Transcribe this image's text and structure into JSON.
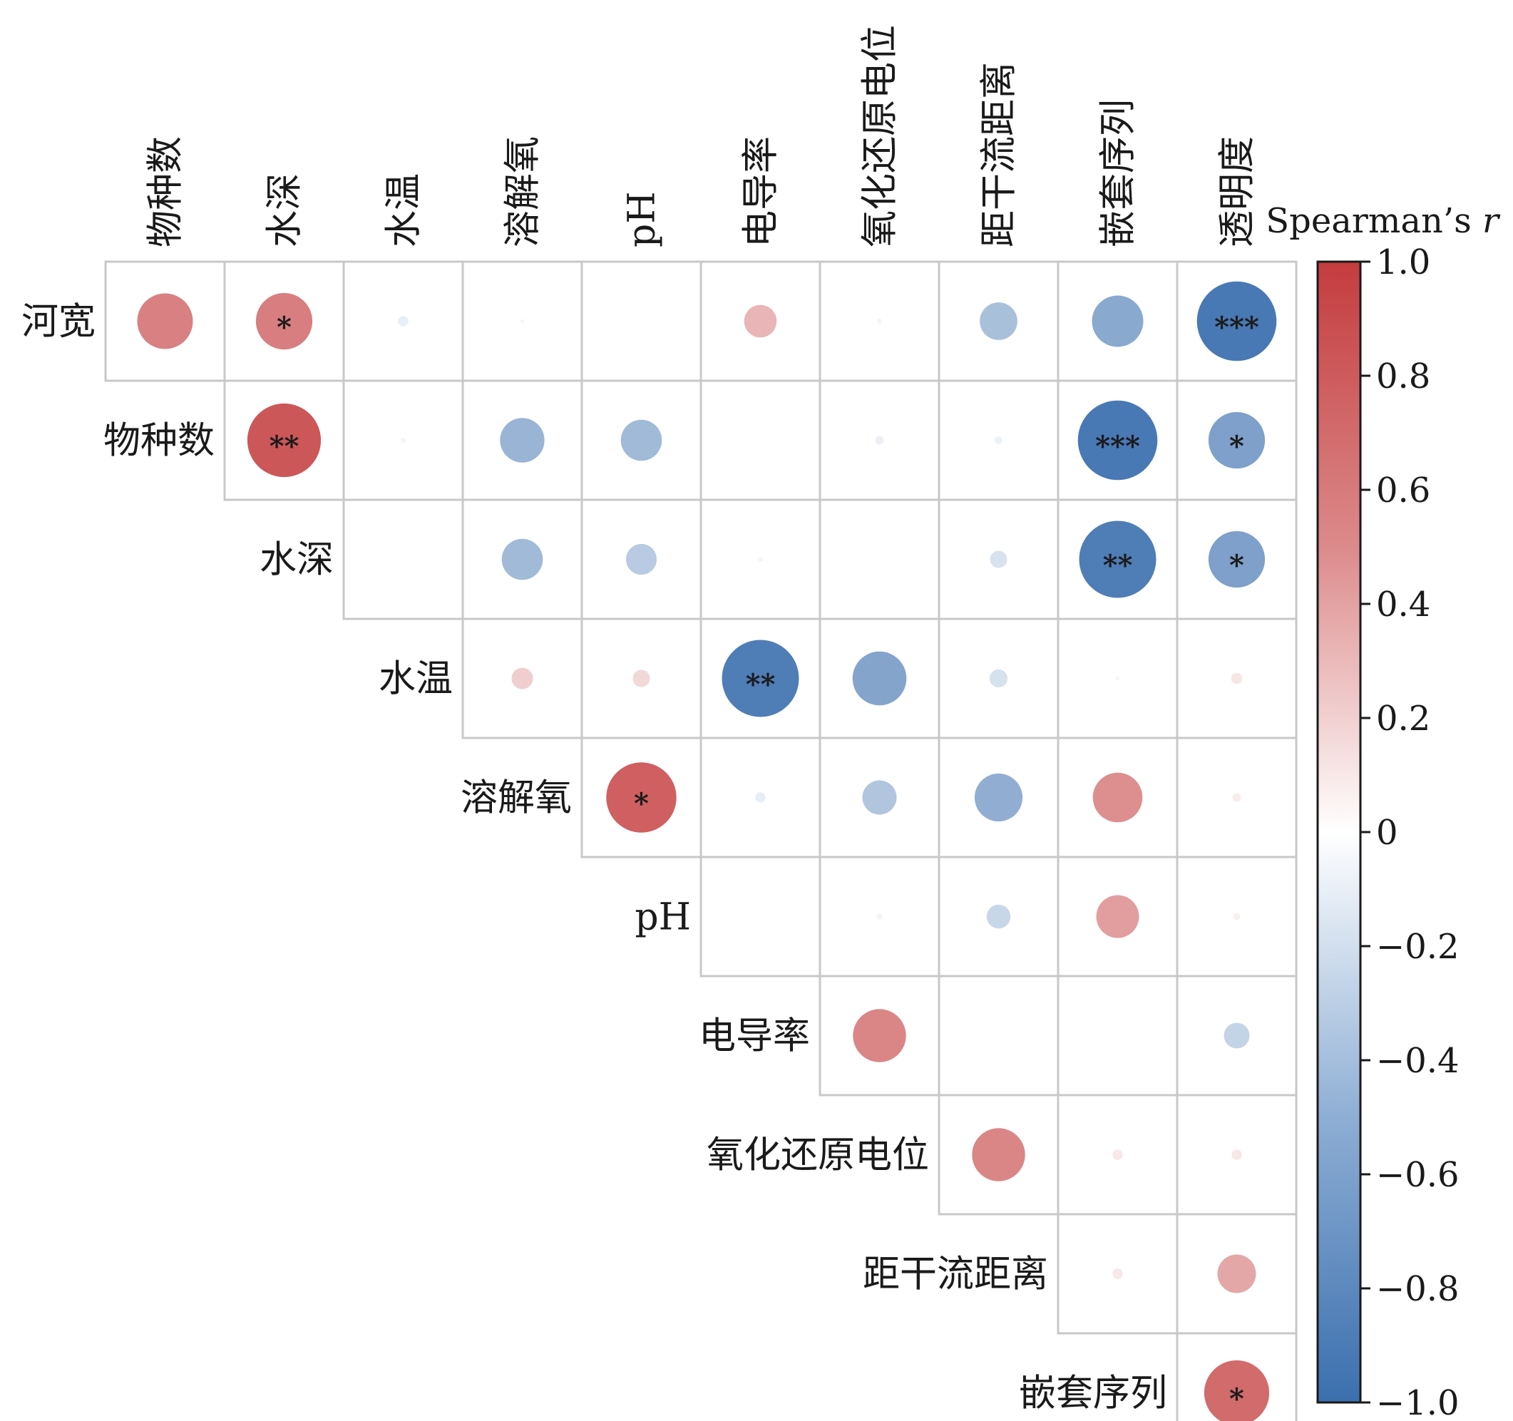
{
  "chart_data": {
    "type": "heatmap",
    "subtype": "upper-triangular correlation circle matrix",
    "row_labels": [
      "河宽",
      "物种数",
      "水深",
      "水温",
      "溶解氧",
      "pH",
      "电导率",
      "氧化还原电位",
      "距干流距离",
      "嵌套序列"
    ],
    "column_labels": [
      "物种数",
      "水深",
      "水温",
      "溶解氧",
      "pH",
      "电导率",
      "氧化还原电位",
      "距干流距离",
      "嵌套序列",
      "透明度"
    ],
    "cells": [
      {
        "row": 0,
        "col": 0,
        "r": 0.65,
        "stars": ""
      },
      {
        "row": 0,
        "col": 1,
        "r": 0.66,
        "stars": "*"
      },
      {
        "row": 0,
        "col": 2,
        "r": -0.12,
        "stars": ""
      },
      {
        "row": 0,
        "col": 3,
        "r": -0.05,
        "stars": ""
      },
      {
        "row": 0,
        "col": 4,
        "r": -0.01,
        "stars": ""
      },
      {
        "row": 0,
        "col": 5,
        "r": 0.38,
        "stars": ""
      },
      {
        "row": 0,
        "col": 6,
        "r": -0.06,
        "stars": ""
      },
      {
        "row": 0,
        "col": 7,
        "r": -0.44,
        "stars": ""
      },
      {
        "row": 0,
        "col": 8,
        "r": -0.6,
        "stars": ""
      },
      {
        "row": 0,
        "col": 9,
        "r": -0.93,
        "stars": "***"
      },
      {
        "row": 1,
        "col": 1,
        "r": 0.86,
        "stars": "**"
      },
      {
        "row": 1,
        "col": 2,
        "r": 0.06,
        "stars": ""
      },
      {
        "row": 1,
        "col": 3,
        "r": -0.52,
        "stars": ""
      },
      {
        "row": 1,
        "col": 4,
        "r": -0.48,
        "stars": ""
      },
      {
        "row": 1,
        "col": 5,
        "r": -0.01,
        "stars": ""
      },
      {
        "row": 1,
        "col": 6,
        "r": -0.1,
        "stars": ""
      },
      {
        "row": 1,
        "col": 7,
        "r": -0.09,
        "stars": ""
      },
      {
        "row": 1,
        "col": 8,
        "r": -0.93,
        "stars": "***"
      },
      {
        "row": 1,
        "col": 9,
        "r": -0.66,
        "stars": "*"
      },
      {
        "row": 2,
        "col": 2,
        "r": -0.01,
        "stars": ""
      },
      {
        "row": 2,
        "col": 3,
        "r": -0.48,
        "stars": ""
      },
      {
        "row": 2,
        "col": 4,
        "r": -0.36,
        "stars": ""
      },
      {
        "row": 2,
        "col": 5,
        "r": 0.06,
        "stars": ""
      },
      {
        "row": 2,
        "col": 6,
        "r": -0.01,
        "stars": ""
      },
      {
        "row": 2,
        "col": 7,
        "r": -0.2,
        "stars": ""
      },
      {
        "row": 2,
        "col": 8,
        "r": -0.9,
        "stars": "**"
      },
      {
        "row": 2,
        "col": 9,
        "r": -0.66,
        "stars": "*"
      },
      {
        "row": 3,
        "col": 3,
        "r": 0.25,
        "stars": ""
      },
      {
        "row": 3,
        "col": 4,
        "r": 0.2,
        "stars": ""
      },
      {
        "row": 3,
        "col": 5,
        "r": -0.9,
        "stars": "**"
      },
      {
        "row": 3,
        "col": 6,
        "r": -0.63,
        "stars": ""
      },
      {
        "row": 3,
        "col": 7,
        "r": -0.21,
        "stars": ""
      },
      {
        "row": 3,
        "col": 8,
        "r": -0.05,
        "stars": ""
      },
      {
        "row": 3,
        "col": 9,
        "r": 0.13,
        "stars": ""
      },
      {
        "row": 4,
        "col": 4,
        "r": 0.82,
        "stars": "*"
      },
      {
        "row": 4,
        "col": 5,
        "r": -0.12,
        "stars": ""
      },
      {
        "row": 4,
        "col": 6,
        "r": -0.4,
        "stars": ""
      },
      {
        "row": 4,
        "col": 7,
        "r": -0.56,
        "stars": ""
      },
      {
        "row": 4,
        "col": 8,
        "r": 0.58,
        "stars": ""
      },
      {
        "row": 4,
        "col": 9,
        "r": 0.1,
        "stars": ""
      },
      {
        "row": 5,
        "col": 5,
        "r": -0.02,
        "stars": ""
      },
      {
        "row": 5,
        "col": 6,
        "r": -0.07,
        "stars": ""
      },
      {
        "row": 5,
        "col": 7,
        "r": -0.28,
        "stars": ""
      },
      {
        "row": 5,
        "col": 8,
        "r": 0.5,
        "stars": ""
      },
      {
        "row": 5,
        "col": 9,
        "r": 0.08,
        "stars": ""
      },
      {
        "row": 6,
        "col": 6,
        "r": 0.62,
        "stars": ""
      },
      {
        "row": 6,
        "col": 7,
        "r": -0.01,
        "stars": ""
      },
      {
        "row": 6,
        "col": 8,
        "r": -0.01,
        "stars": ""
      },
      {
        "row": 6,
        "col": 9,
        "r": -0.3,
        "stars": ""
      },
      {
        "row": 7,
        "col": 7,
        "r": 0.62,
        "stars": ""
      },
      {
        "row": 7,
        "col": 8,
        "r": 0.12,
        "stars": ""
      },
      {
        "row": 7,
        "col": 9,
        "r": 0.12,
        "stars": ""
      },
      {
        "row": 8,
        "col": 8,
        "r": 0.12,
        "stars": ""
      },
      {
        "row": 8,
        "col": 9,
        "r": 0.45,
        "stars": ""
      },
      {
        "row": 9,
        "col": 9,
        "r": 0.76,
        "stars": "*"
      }
    ],
    "colorbar": {
      "title": "Spearman’s ",
      "title_italic": "r",
      "range": [
        -1.0,
        1.0
      ],
      "ticks": [
        1.0,
        0.8,
        0.6,
        0.4,
        0.2,
        0,
        -0.2,
        -0.4,
        -0.6,
        -0.8,
        -1.0
      ],
      "tick_labels": [
        "1.0",
        "0.8",
        "0.6",
        "0.4",
        "0.2",
        "0",
        "−0.2",
        "−0.4",
        "−0.6",
        "−0.8",
        "−1.0"
      ],
      "colormap": {
        "negative": "#3b6fae",
        "zero": "#ffffff",
        "positive": "#c43c3e"
      }
    }
  }
}
